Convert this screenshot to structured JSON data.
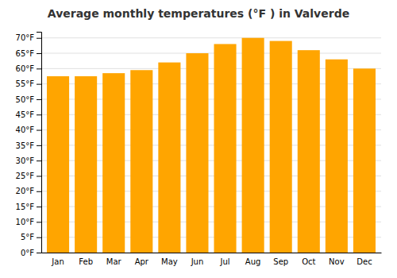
{
  "chart_data": {
    "type": "bar",
    "title": "Average monthly temperatures (°F ) in Valverde",
    "categories": [
      "Jan",
      "Feb",
      "Mar",
      "Apr",
      "May",
      "Jun",
      "Jul",
      "Aug",
      "Sep",
      "Oct",
      "Nov",
      "Dec"
    ],
    "values": [
      57.5,
      57.5,
      58.5,
      59.5,
      62.0,
      65.0,
      68.0,
      70.0,
      69.0,
      66.0,
      63.0,
      60.0
    ],
    "color": "#FFA500",
    "ylim": [
      0,
      72
    ],
    "yticks": [
      {
        "value": 0,
        "label": "0°F"
      },
      {
        "value": 5,
        "label": "5°F"
      },
      {
        "value": 10,
        "label": "10°F"
      },
      {
        "value": 15,
        "label": "15°F"
      },
      {
        "value": 20,
        "label": "20°F"
      },
      {
        "value": 25,
        "label": "25°F"
      },
      {
        "value": 30,
        "label": "30°F"
      },
      {
        "value": 35,
        "label": "35°F"
      },
      {
        "value": 40,
        "label": "40°F"
      },
      {
        "value": 45,
        "label": "45°F"
      },
      {
        "value": 50,
        "label": "50°F"
      },
      {
        "value": 55,
        "label": "55°F"
      },
      {
        "value": 60,
        "label": "60°F"
      },
      {
        "value": 65,
        "label": "65°F"
      },
      {
        "value": 70,
        "label": "70°F"
      }
    ],
    "grid": true
  }
}
